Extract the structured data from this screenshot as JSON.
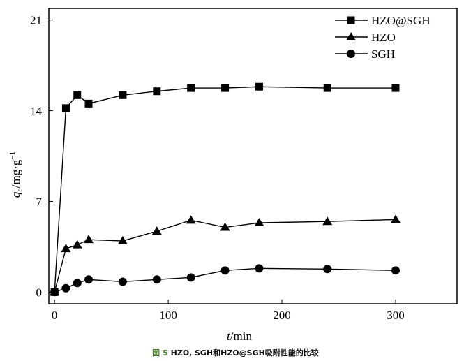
{
  "caption": {
    "figure_label": "图 5",
    "text": "HZO, SGH和HZO@SGH吸附性能的比较"
  },
  "chart_data": {
    "type": "line",
    "title": "",
    "xlabel": "t/min",
    "ylabel": "qe/mg·g⁻¹",
    "xlim": [
      -5,
      354
    ],
    "ylim": [
      -0.9,
      21.9
    ],
    "xticks": [
      0,
      100,
      200,
      300
    ],
    "yticks": [
      0,
      7,
      14,
      21
    ],
    "grid": false,
    "legend_position": "top-right",
    "x": [
      0,
      10,
      20,
      30,
      60,
      90,
      120,
      150,
      180,
      240,
      300
    ],
    "series": [
      {
        "name": "HZO@SGH",
        "marker": "square",
        "values": [
          0,
          14.2,
          15.2,
          14.55,
          15.2,
          15.5,
          15.75,
          15.75,
          15.85,
          15.75,
          15.75
        ]
      },
      {
        "name": "HZO",
        "marker": "triangle",
        "values": [
          0,
          3.35,
          3.65,
          4.05,
          3.95,
          4.7,
          5.55,
          5.0,
          5.35,
          5.45,
          5.6
        ]
      },
      {
        "name": "SGH",
        "marker": "circle",
        "values": [
          0,
          0.3,
          0.7,
          0.97,
          0.8,
          0.97,
          1.13,
          1.67,
          1.83,
          1.78,
          1.67
        ]
      }
    ]
  }
}
